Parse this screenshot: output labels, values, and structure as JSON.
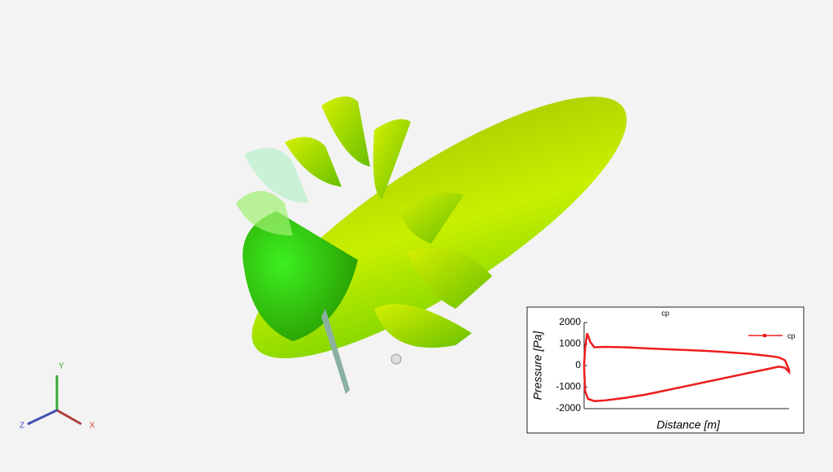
{
  "chart_data": {
    "type": "line",
    "title": "cp",
    "xlabel": "Distance [m]",
    "ylabel": "Pressure [Pa]",
    "x": [
      0,
      0.005,
      0.015,
      0.03,
      0.05,
      0.1,
      0.2,
      0.3,
      0.4,
      0.5,
      0.6,
      0.7,
      0.8,
      0.9,
      0.95,
      0.98,
      1.0,
      1.0,
      0.98,
      0.95,
      0.9,
      0.8,
      0.7,
      0.6,
      0.5,
      0.4,
      0.3,
      0.2,
      0.1,
      0.05,
      0.02,
      0.005,
      0
    ],
    "series": [
      {
        "name": "cp",
        "color": "#ee1c1c",
        "values": [
          0,
          800,
          1500,
          1100,
          850,
          870,
          850,
          800,
          760,
          720,
          680,
          620,
          550,
          450,
          380,
          250,
          -200,
          -300,
          -100,
          -50,
          -150,
          -350,
          -550,
          -750,
          -950,
          -1150,
          -1350,
          -1500,
          -1620,
          -1650,
          -1550,
          -1200,
          0
        ]
      }
    ],
    "xlim": [
      0,
      1
    ],
    "ylim": [
      -2000,
      2000
    ],
    "yticks": [
      -2000,
      -1000,
      0,
      1000,
      2000
    ],
    "grid": false,
    "legend": "upper right"
  },
  "axes_triad": {
    "x": "X",
    "y": "Y",
    "z": "Z"
  }
}
